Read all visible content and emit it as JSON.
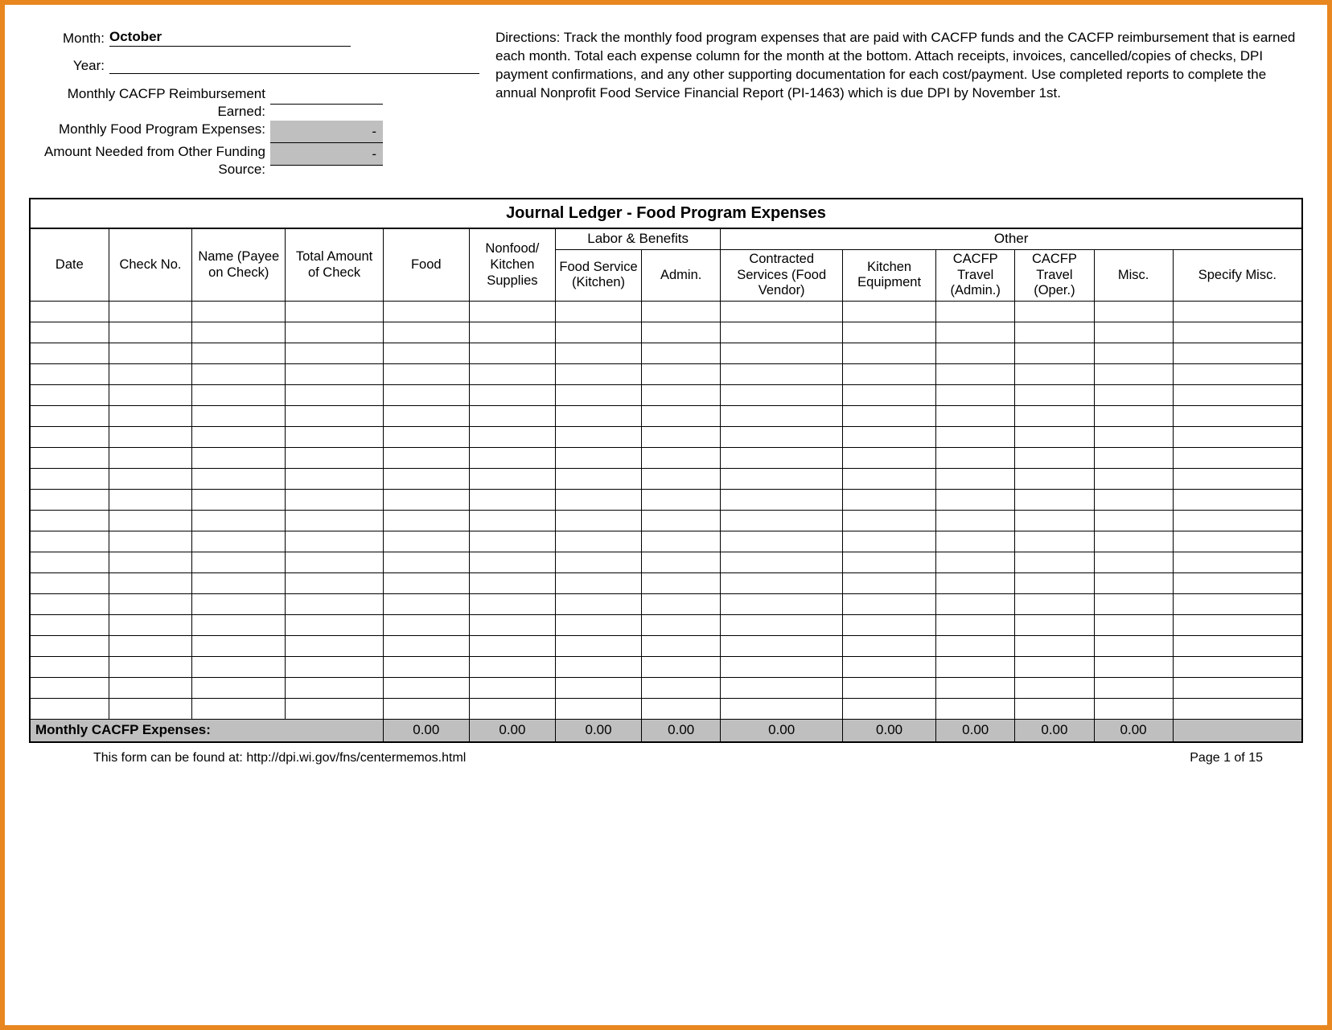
{
  "header": {
    "month_label": "Month:",
    "month_value": "October",
    "year_label": "Year:",
    "year_value": "",
    "reimbursement_label": "Monthly CACFP Reimbursement Earned:",
    "expenses_label": "Monthly Food Program Expenses:",
    "funding_source_label": "Amount Needed from Other Funding Source:",
    "expenses_value": "-",
    "funding_source_value": "-"
  },
  "directions": "Directions: Track the monthly food program expenses that are paid with CACFP funds and the CACFP reimbursement that is earned each month. Total each expense column for the month at the bottom. Attach receipts, invoices, cancelled/copies of checks, DPI payment confirmations, and any other supporting documentation for each cost/payment. Use completed reports to complete  the annual Nonprofit Food Service Financial Report (PI-1463) which is due DPI by November 1st.",
  "ledger": {
    "title": "Journal Ledger - Food Program Expenses",
    "group_labor": "Labor & Benefits",
    "group_other": "Other",
    "columns": {
      "date": "Date",
      "check_no": "Check No.",
      "name": "Name (Payee on Check)",
      "total_amount": "Total Amount of Check",
      "food": "Food",
      "nonfood": "Nonfood/ Kitchen Supplies",
      "food_service": "Food Service (Kitchen)",
      "admin": "Admin.",
      "contracted": "Contracted Services (Food Vendor)",
      "kitchen_equip": "Kitchen Equipment",
      "travel_admin": "CACFP Travel (Admin.)",
      "travel_oper": "CACFP Travel (Oper.)",
      "misc": "Misc.",
      "specify_misc": "Specify Misc."
    },
    "row_count": 20,
    "totals": {
      "label": "Monthly CACFP Expenses:",
      "food": "0.00",
      "nonfood": "0.00",
      "food_service": "0.00",
      "admin": "0.00",
      "contracted": "0.00",
      "kitchen_equip": "0.00",
      "travel_admin": "0.00",
      "travel_oper": "0.00",
      "misc": "0.00"
    }
  },
  "footer": {
    "source": "This form can be found at: http://dpi.wi.gov/fns/centermemos.html",
    "page": "Page 1 of 15"
  },
  "colors": {
    "frame_border": "#e8861f",
    "shaded_cell": "#bfbfbf",
    "line": "#000000",
    "text": "#000000",
    "background": "#ffffff"
  }
}
